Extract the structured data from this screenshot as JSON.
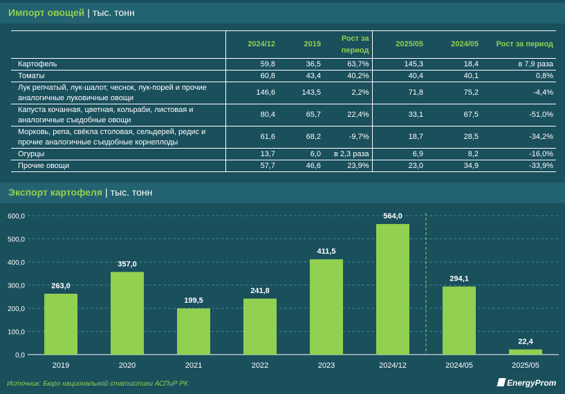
{
  "import_section": {
    "title": "Импорт овощей",
    "separator": "|",
    "unit": "тыс. тонн"
  },
  "import_table": {
    "columns": [
      "",
      "2024/12",
      "2019",
      "Рост за период",
      "2025/05",
      "2024/05",
      "Рост за период"
    ],
    "rows": [
      {
        "name": "Картофель",
        "v1": "59,8",
        "v2": "36,5",
        "g1": "63,7%",
        "v3": "145,3",
        "v4": "18,4",
        "g2": "в 7,9 раза"
      },
      {
        "name": "Томаты",
        "v1": "60,8",
        "v2": "43,4",
        "g1": "40,2%",
        "v3": "40,4",
        "v4": "40,1",
        "g2": "0,8%"
      },
      {
        "name": "Лук репчатый, лук-шалот, чеснок, лук-порей и прочие аналогичные луковичные овощи",
        "v1": "146,6",
        "v2": "143,5",
        "g1": "2,2%",
        "v3": "71,8",
        "v4": "75,2",
        "g2": "-4,4%"
      },
      {
        "name": "Капуста кочанная, цветная, кольраби, листовая и аналогичные съедобные овощи",
        "v1": "80,4",
        "v2": "65,7",
        "g1": "22,4%",
        "v3": "33,1",
        "v4": "67,5",
        "g2": "-51,0%"
      },
      {
        "name": "Морковь, репа, свёкла столовая, сельдерей, редис и прочие аналогичные съедобные корнеплоды",
        "v1": "61,6",
        "v2": "68,2",
        "g1": "-9,7%",
        "v3": "18,7",
        "v4": "28,5",
        "g2": "-34,2%"
      },
      {
        "name": "Огурцы",
        "v1": "13,7",
        "v2": "6,0",
        "g1": "в 2,3 раза",
        "v3": "6,9",
        "v4": "8,2",
        "g2": "-16,0%"
      },
      {
        "name": "Прочие овощи",
        "v1": "57,7",
        "v2": "46,6",
        "g1": "23,9%",
        "v3": "23,0",
        "v4": "34,9",
        "g2": "-33,9%"
      }
    ]
  },
  "export_section": {
    "title": "Экспорт картофеля",
    "separator": "|",
    "unit": "тыс. тонн"
  },
  "chart_data": {
    "type": "bar",
    "categories": [
      "2019",
      "2020",
      "2021",
      "2022",
      "2023",
      "2024/12",
      "2024/05",
      "2025/05"
    ],
    "values": [
      263.0,
      357.0,
      199.5,
      241.8,
      411.5,
      564.0,
      294.1,
      22.4
    ],
    "value_labels": [
      "263,0",
      "357,0",
      "199,5",
      "241,8",
      "411,5",
      "564,0",
      "294,1",
      "22,4"
    ],
    "yticks": [
      "0,0",
      "100,0",
      "200,0",
      "300,0",
      "400,0",
      "500,0",
      "600,0"
    ],
    "ylim": [
      0,
      600
    ],
    "grid": true,
    "bar_color": "#92d050",
    "divider_after_index": 5
  },
  "footer": {
    "source": "Источник: Бюро национальной статистики АСПиР РК",
    "logo": "EnergyProm"
  }
}
